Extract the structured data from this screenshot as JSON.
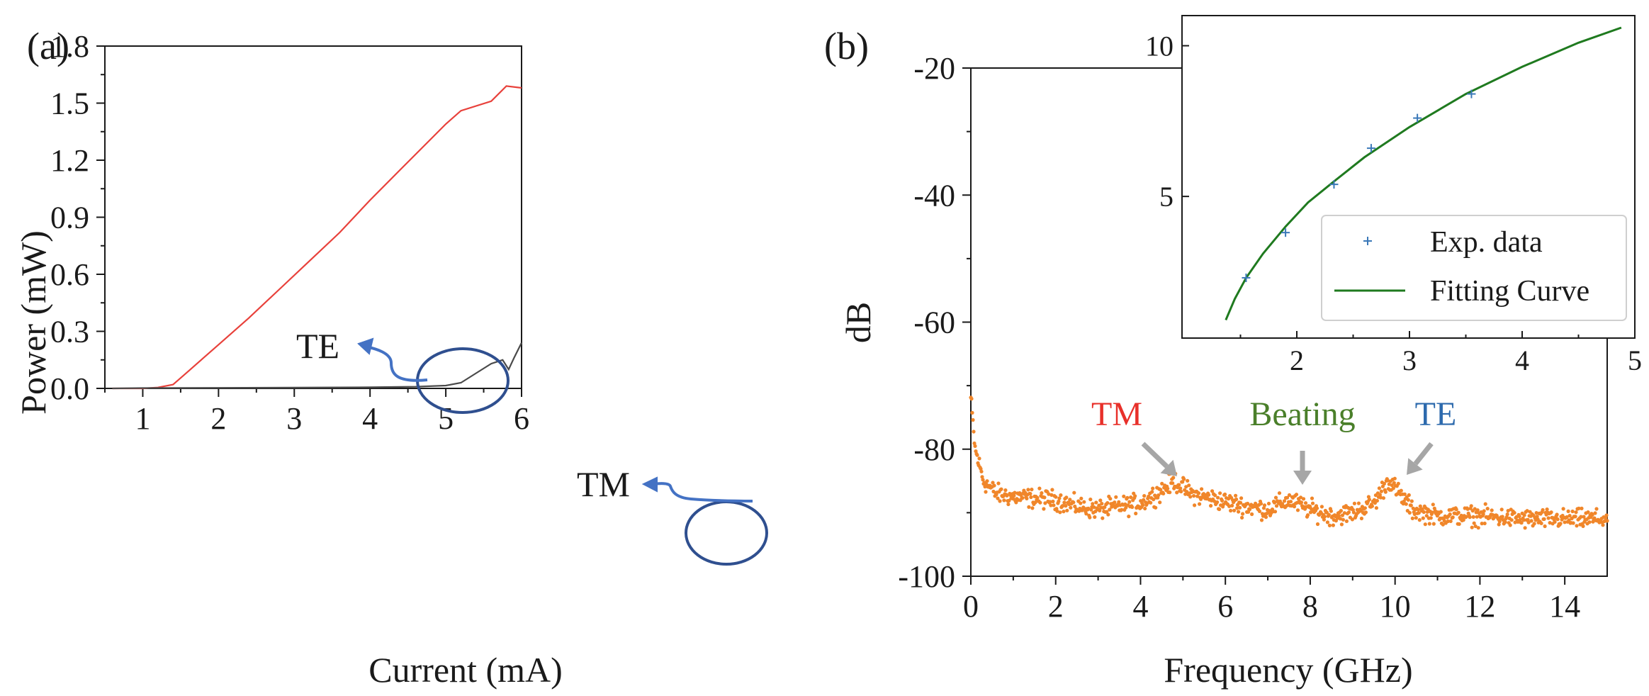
{
  "chart_data": [
    {
      "panel_label": "(a)",
      "type": "line",
      "xlabel": "Current (mA)",
      "ylabel": "Power (mW)",
      "xlim": [
        0.5,
        6
      ],
      "ylim": [
        0,
        1.8
      ],
      "xticks": [
        1,
        2,
        3,
        4,
        5,
        6
      ],
      "xtick_labels": [
        "1",
        "2",
        "3",
        "4",
        "5",
        "6"
      ],
      "yticks": [
        0,
        0.3,
        0.6,
        0.9,
        1.2,
        1.5,
        1.8
      ],
      "ytick_labels": [
        "0.0",
        "0.3",
        "0.6",
        "0.9",
        "1.2",
        "1.5",
        "1.8"
      ],
      "series": [
        {
          "key": "te",
          "color": "#e8413b",
          "x": [
            0.6,
            1.0,
            1.2,
            1.4,
            1.6,
            1.8,
            2.0,
            2.4,
            2.8,
            3.2,
            3.6,
            4.0,
            4.4,
            4.8,
            5.0,
            5.2,
            5.6,
            5.8,
            6.0
          ],
          "y": [
            0.0,
            0.0,
            0.005,
            0.02,
            0.09,
            0.16,
            0.23,
            0.37,
            0.52,
            0.67,
            0.82,
            0.99,
            1.15,
            1.31,
            1.39,
            1.46,
            1.51,
            1.59,
            1.58
          ]
        },
        {
          "key": "tm",
          "color": "#4a4a4a",
          "x": [
            0.6,
            1.0,
            2.0,
            3.0,
            4.0,
            4.6,
            5.0,
            5.2,
            5.4,
            5.6,
            5.75,
            5.83,
            5.9,
            6.0
          ],
          "y": [
            0.0,
            0.002,
            0.003,
            0.004,
            0.006,
            0.009,
            0.015,
            0.03,
            0.08,
            0.13,
            0.15,
            0.1,
            0.16,
            0.24
          ]
        }
      ],
      "annotations": [
        {
          "key": "te_label",
          "text": "TE",
          "color": "#1a1a1a"
        },
        {
          "key": "tm_label",
          "text": "TM",
          "color": "#1a1a1a"
        }
      ],
      "annotation_color": "#2f4f8f",
      "arrow_color": "#4472c4"
    },
    {
      "panel_label": "(b)",
      "type": "scatter",
      "xlabel": "Frequency (GHz)",
      "ylabel": "dB",
      "xlim": [
        0,
        15
      ],
      "ylim": [
        -100,
        -20
      ],
      "xticks": [
        0,
        2,
        4,
        6,
        8,
        10,
        12,
        14
      ],
      "xtick_labels": [
        "0",
        "2",
        "4",
        "6",
        "8",
        "10",
        "12",
        "14"
      ],
      "yticks": [
        -100,
        -80,
        -60,
        -40,
        -20
      ],
      "ytick_labels": [
        "-100",
        "-80",
        "-60",
        "-40",
        "-20"
      ],
      "series": [
        {
          "key": "spectrum",
          "color": "#f0862a",
          "baseline": [
            [
              0.0,
              -72
            ],
            [
              0.1,
              -80
            ],
            [
              0.3,
              -85
            ],
            [
              0.6,
              -87
            ],
            [
              1.0,
              -87.5
            ],
            [
              2.0,
              -88
            ],
            [
              2.5,
              -89
            ],
            [
              3.0,
              -89.5
            ],
            [
              3.5,
              -89
            ],
            [
              4.0,
              -88.5
            ],
            [
              4.5,
              -86.5
            ],
            [
              4.8,
              -85
            ],
            [
              5.2,
              -87
            ],
            [
              5.8,
              -88
            ],
            [
              6.5,
              -89
            ],
            [
              7.0,
              -89.5
            ],
            [
              7.5,
              -88
            ],
            [
              8.0,
              -89.5
            ],
            [
              8.5,
              -90.5
            ],
            [
              9.0,
              -90
            ],
            [
              9.5,
              -88.5
            ],
            [
              9.85,
              -84.8
            ],
            [
              10.1,
              -87
            ],
            [
              10.4,
              -89.5
            ],
            [
              11.0,
              -90.5
            ],
            [
              12.0,
              -90.5
            ],
            [
              13.0,
              -91
            ],
            [
              14.0,
              -91
            ],
            [
              15.0,
              -91
            ]
          ],
          "noise_db": 1.0,
          "point_count": 900
        }
      ],
      "peak_labels": [
        {
          "key": "tm",
          "text": "TM",
          "color": "#e8302a",
          "peak_x": 4.8,
          "peak_y": -85
        },
        {
          "key": "beating",
          "text": "Beating",
          "color": "#4a7f2a",
          "peak_x": 7.5,
          "peak_y": -87.5
        },
        {
          "key": "te",
          "text": "TE",
          "color": "#2d6aad",
          "peak_x": 9.85,
          "peak_y": -84.8
        }
      ],
      "arrow_color": "#a6a6a6",
      "inset": {
        "type": "line",
        "xlim": [
          1.2,
          5
        ],
        "ylim": [
          0.3,
          11
        ],
        "xticks": [
          2,
          3,
          4,
          5
        ],
        "xtick_labels": [
          "2",
          "3",
          "4",
          "5"
        ],
        "yticks": [
          5,
          10
        ],
        "ytick_labels": [
          "5",
          "10"
        ],
        "legend": [
          {
            "key": "exp",
            "label": "Exp. data",
            "marker": "+",
            "color": "#3a78b8"
          },
          {
            "key": "fit",
            "label": "Fitting Curve",
            "marker": "line",
            "color": "#1f7a1f"
          }
        ],
        "legend_position": "bottom-right",
        "exp_points": {
          "x": [
            1.55,
            1.9,
            2.33,
            2.66,
            3.07,
            3.55
          ],
          "y": [
            2.3,
            3.8,
            5.4,
            6.6,
            7.6,
            8.4
          ]
        },
        "fit_curve": {
          "x": [
            1.37,
            1.45,
            1.55,
            1.7,
            1.9,
            2.1,
            2.33,
            2.6,
            3.0,
            3.5,
            4.0,
            4.5,
            4.88
          ],
          "y": [
            0.9,
            1.6,
            2.3,
            3.1,
            4.0,
            4.8,
            5.5,
            6.3,
            7.3,
            8.4,
            9.3,
            10.1,
            10.6
          ]
        }
      }
    }
  ]
}
